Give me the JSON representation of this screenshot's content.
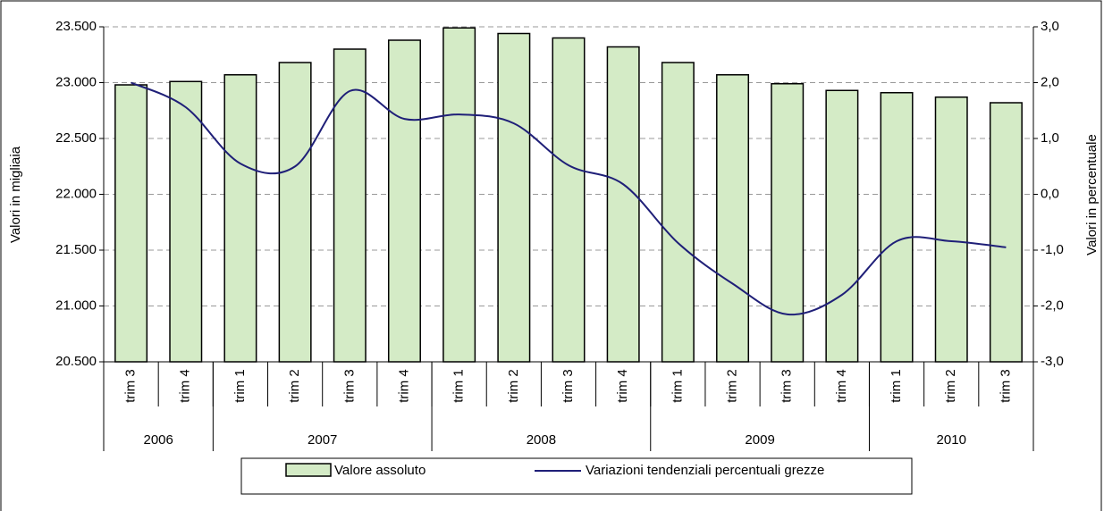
{
  "chart_data": {
    "type": "bar-line",
    "categories": [
      "trim 3",
      "trim 4",
      "trim 1",
      "trim 2",
      "trim 3",
      "trim 4",
      "trim 1",
      "trim 2",
      "trim 3",
      "trim 4",
      "trim 1",
      "trim 2",
      "trim 3",
      "trim 4",
      "trim 1",
      "trim 2",
      "trim 3"
    ],
    "year_groups": [
      {
        "label": "2006",
        "count": 2
      },
      {
        "label": "2007",
        "count": 4
      },
      {
        "label": "2008",
        "count": 4
      },
      {
        "label": "2009",
        "count": 4
      },
      {
        "label": "2010",
        "count": 3
      }
    ],
    "y_label": "Valori in migliaia",
    "y2_label": "Valori in percentuale",
    "ylim": [
      20500,
      23500
    ],
    "yticks": [
      {
        "value": 20500,
        "label": "20.500"
      },
      {
        "value": 21000,
        "label": "21.000"
      },
      {
        "value": 21500,
        "label": "21.500"
      },
      {
        "value": 22000,
        "label": "22.000"
      },
      {
        "value": 22500,
        "label": "22.500"
      },
      {
        "value": 23000,
        "label": "23.000"
      },
      {
        "value": 23500,
        "label": "23.500"
      }
    ],
    "y2lim": [
      -3,
      3
    ],
    "y2ticks": [
      {
        "value": -3,
        "label": "-3,0"
      },
      {
        "value": -2,
        "label": "-2,0"
      },
      {
        "value": -1,
        "label": "-1,0"
      },
      {
        "value": 0,
        "label": "0,0"
      },
      {
        "value": 1,
        "label": "1,0"
      },
      {
        "value": 2,
        "label": "2,0"
      },
      {
        "value": 3,
        "label": "3,0"
      }
    ],
    "grid": true,
    "series": [
      {
        "name": "Valore assoluto",
        "type": "bar",
        "color": "#d4ebc6",
        "values": [
          22980,
          23010,
          23070,
          23180,
          23300,
          23380,
          23490,
          23440,
          23400,
          23320,
          23180,
          23070,
          22990,
          22930,
          22910,
          22870,
          22820
        ]
      },
      {
        "name": "Variazioni tendenziali percentuali grezze",
        "type": "line",
        "axis": "y2",
        "color": "#1f1f78",
        "values": [
          2.0,
          1.56,
          0.55,
          0.5,
          1.85,
          1.35,
          1.43,
          1.27,
          0.52,
          0.18,
          -0.87,
          -1.6,
          -2.15,
          -1.8,
          -0.84,
          -0.84,
          -0.95
        ]
      }
    ]
  }
}
